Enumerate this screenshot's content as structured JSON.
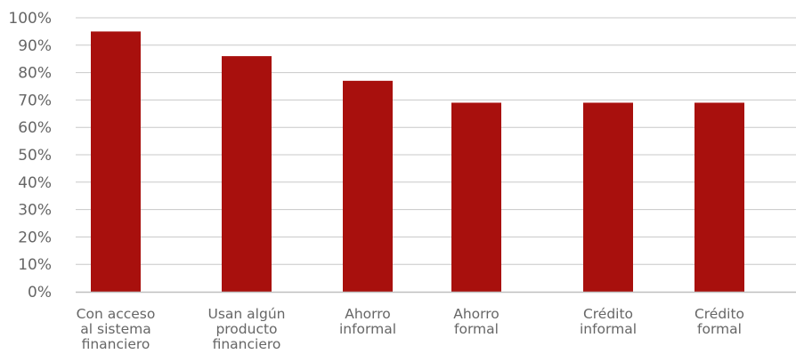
{
  "chart_data": {
    "type": "bar",
    "title": "",
    "xlabel": "",
    "ylabel": "",
    "categories": [
      "Con acceso al sistema financiero",
      "Usan algún producto financiero",
      "Ahorro informal",
      "Ahorro formal",
      "Crédito informal",
      "Crédito formal"
    ],
    "category_lines": [
      [
        "Con acceso",
        "al sistema",
        "financiero"
      ],
      [
        "Usan algún",
        "producto",
        "financiero"
      ],
      [
        "Ahorro",
        "informal"
      ],
      [
        "Ahorro",
        "formal"
      ],
      [
        "Crédito",
        "informal"
      ],
      [
        "Crédito",
        "formal"
      ]
    ],
    "values": [
      95,
      86,
      77,
      69,
      69,
      69
    ],
    "unit": "%",
    "ylim": [
      0,
      100
    ],
    "yticks": [
      "0%",
      "10%",
      "20%",
      "30%",
      "40%",
      "50%",
      "60%",
      "70%",
      "80%",
      "90%",
      "100%"
    ],
    "bar_color": "#a8100d",
    "grid": true,
    "legend": "none"
  }
}
